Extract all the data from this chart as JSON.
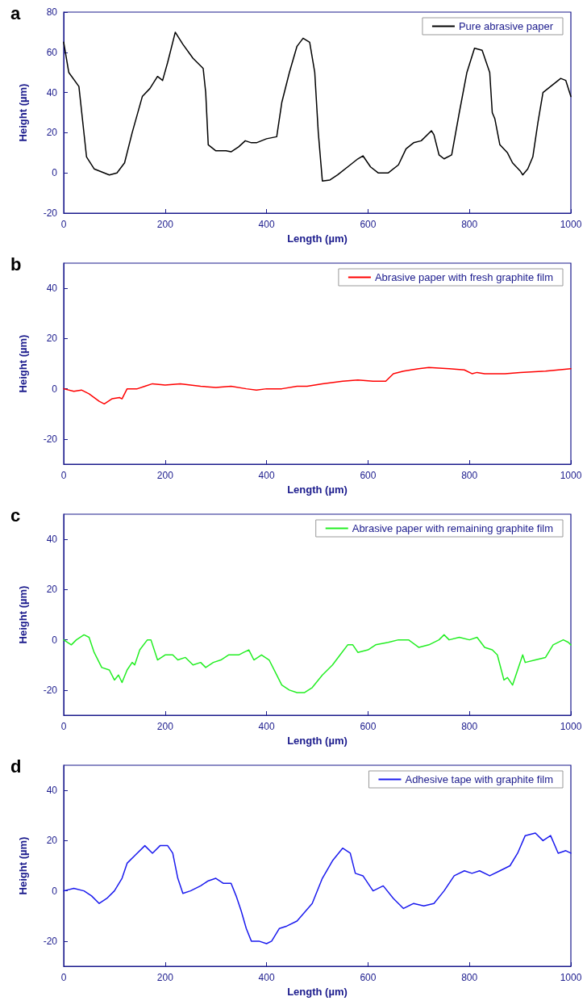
{
  "chart_data": [
    {
      "type": "line",
      "title": "a",
      "xlabel": "Length (µm)",
      "ylabel": "Height (µm)",
      "xlim": [
        0,
        1000
      ],
      "xticks": [
        0,
        200,
        400,
        600,
        800,
        1000
      ],
      "ylim": [
        -20,
        80
      ],
      "yticks": [
        -20,
        0,
        20,
        40,
        60,
        80
      ],
      "legend": "top right",
      "marker": "none",
      "line_style": "solid",
      "series": [
        {
          "name": "Pure abrasive paper",
          "color": "#000000",
          "x": [
            0,
            10,
            30,
            45,
            60,
            90,
            105,
            120,
            135,
            155,
            170,
            185,
            195,
            205,
            220,
            235,
            255,
            275,
            280,
            285,
            300,
            320,
            330,
            345,
            358,
            370,
            380,
            400,
            420,
            430,
            445,
            460,
            472,
            485,
            495,
            502,
            510,
            525,
            540,
            565,
            580,
            590,
            605,
            620,
            640,
            660,
            675,
            690,
            705,
            725,
            730,
            740,
            750,
            765,
            780,
            795,
            810,
            825,
            840,
            845,
            850,
            860,
            875,
            885,
            900,
            905,
            915,
            925,
            935,
            945,
            960,
            980,
            990,
            1000
          ],
          "values": [
            65,
            50,
            43,
            8,
            2,
            -1,
            0,
            5,
            20,
            38,
            42,
            48,
            46,
            55,
            70,
            64,
            57,
            52,
            40,
            14,
            11,
            11,
            10.5,
            13,
            16,
            15,
            15,
            17,
            18,
            35,
            50,
            63,
            67,
            65,
            50,
            20,
            -4,
            -3.5,
            -1,
            4,
            7,
            8.5,
            3,
            0,
            0,
            4,
            12,
            15,
            16,
            21,
            19,
            9,
            7,
            9,
            30,
            50,
            62,
            61,
            50,
            30,
            27,
            14,
            10,
            5,
            1,
            -1,
            2,
            8,
            25,
            40,
            43,
            47,
            46,
            38
          ]
        }
      ]
    },
    {
      "type": "line",
      "title": "b",
      "xlabel": "Length (µm)",
      "ylabel": "Height (µm)",
      "xlim": [
        0,
        1000
      ],
      "xticks": [
        0,
        200,
        400,
        600,
        800,
        1000
      ],
      "ylim": [
        -30,
        50
      ],
      "yticks": [
        -20,
        0,
        20,
        40
      ],
      "legend": "top right",
      "marker": "none",
      "line_style": "solid",
      "series": [
        {
          "name": "Abrasive paper with fresh graphite film",
          "color": "#ff0000",
          "x": [
            0,
            20,
            35,
            50,
            70,
            80,
            95,
            110,
            115,
            125,
            145,
            160,
            175,
            200,
            230,
            270,
            300,
            330,
            360,
            380,
            400,
            430,
            460,
            480,
            510,
            550,
            580,
            610,
            635,
            650,
            670,
            700,
            720,
            760,
            790,
            805,
            815,
            830,
            870,
            900,
            950,
            1000
          ],
          "values": [
            0,
            -1,
            -0.5,
            -2,
            -5,
            -6,
            -4,
            -3.5,
            -4,
            0,
            0,
            1,
            2,
            1.5,
            2,
            1,
            0.5,
            1,
            0,
            -0.5,
            0,
            0,
            1,
            1,
            2,
            3,
            3.5,
            3,
            3,
            6,
            7,
            8,
            8.5,
            8,
            7.5,
            6,
            6.5,
            6,
            6,
            6.5,
            7,
            8
          ]
        }
      ]
    },
    {
      "type": "line",
      "title": "c",
      "xlabel": "Length (µm)",
      "ylabel": "Height (µm)",
      "xlim": [
        0,
        1000
      ],
      "xticks": [
        0,
        200,
        400,
        600,
        800,
        1000
      ],
      "ylim": [
        -30,
        50
      ],
      "yticks": [
        -20,
        0,
        20,
        40
      ],
      "legend": "top right",
      "marker": "none",
      "line_style": "solid",
      "series": [
        {
          "name": "Abrasive paper with remaining graphite film",
          "color": "#22ee22",
          "x": [
            0,
            15,
            25,
            40,
            50,
            60,
            75,
            90,
            100,
            108,
            115,
            125,
            135,
            140,
            150,
            165,
            172,
            185,
            200,
            215,
            225,
            240,
            255,
            270,
            280,
            295,
            310,
            325,
            345,
            355,
            365,
            375,
            390,
            405,
            420,
            430,
            445,
            460,
            475,
            490,
            510,
            530,
            545,
            560,
            570,
            580,
            600,
            615,
            640,
            660,
            680,
            700,
            720,
            740,
            750,
            760,
            780,
            800,
            815,
            830,
            845,
            855,
            868,
            875,
            885,
            895,
            905,
            910,
            930,
            950,
            965,
            985,
            995,
            1000
          ],
          "values": [
            0,
            -2,
            0,
            2,
            1,
            -5,
            -11,
            -12,
            -16,
            -14,
            -17,
            -12,
            -9,
            -10,
            -4,
            0,
            0,
            -8,
            -6,
            -6,
            -8,
            -7,
            -10,
            -9,
            -11,
            -9,
            -8,
            -6,
            -6,
            -5,
            -4,
            -8,
            -6,
            -8,
            -14,
            -18,
            -20,
            -21,
            -21,
            -19,
            -14,
            -10,
            -6,
            -2,
            -2,
            -5,
            -4,
            -2,
            -1,
            0,
            0,
            -3,
            -2,
            0,
            2,
            0,
            1,
            0,
            1,
            -3,
            -4,
            -6,
            -16,
            -15,
            -18,
            -12,
            -6,
            -9,
            -8,
            -7,
            -2,
            0,
            -1,
            -2
          ]
        }
      ]
    },
    {
      "type": "line",
      "title": "d",
      "xlabel": "Length (µm)",
      "ylabel": "Height (µm)",
      "xlim": [
        0,
        1000
      ],
      "xticks": [
        0,
        200,
        400,
        600,
        800,
        1000
      ],
      "ylim": [
        -30,
        50
      ],
      "yticks": [
        -20,
        0,
        20,
        40
      ],
      "legend": "top right",
      "marker": "none",
      "line_style": "solid",
      "series": [
        {
          "name": "Adhesive tape with graphite film",
          "color": "#1a1aee",
          "x": [
            0,
            20,
            40,
            55,
            70,
            85,
            100,
            115,
            125,
            140,
            160,
            175,
            190,
            205,
            215,
            225,
            235,
            250,
            270,
            285,
            300,
            315,
            330,
            340,
            350,
            360,
            370,
            385,
            400,
            410,
            425,
            440,
            460,
            490,
            510,
            530,
            550,
            565,
            575,
            590,
            610,
            630,
            650,
            670,
            690,
            710,
            730,
            750,
            770,
            790,
            805,
            820,
            840,
            860,
            880,
            895,
            910,
            930,
            945,
            960,
            975,
            990,
            1000
          ],
          "values": [
            0,
            1,
            0,
            -2,
            -5,
            -3,
            0,
            5,
            11,
            14,
            18,
            15,
            18,
            18,
            15,
            5,
            -1,
            0,
            2,
            4,
            5,
            3,
            3,
            -2,
            -8,
            -15,
            -20,
            -20,
            -21,
            -20,
            -15,
            -14,
            -12,
            -5,
            5,
            12,
            17,
            15,
            7,
            6,
            0,
            2,
            -3,
            -7,
            -5,
            -6,
            -5,
            0,
            6,
            8,
            7,
            8,
            6,
            8,
            10,
            15,
            22,
            23,
            20,
            22,
            15,
            16,
            15
          ]
        }
      ]
    }
  ]
}
